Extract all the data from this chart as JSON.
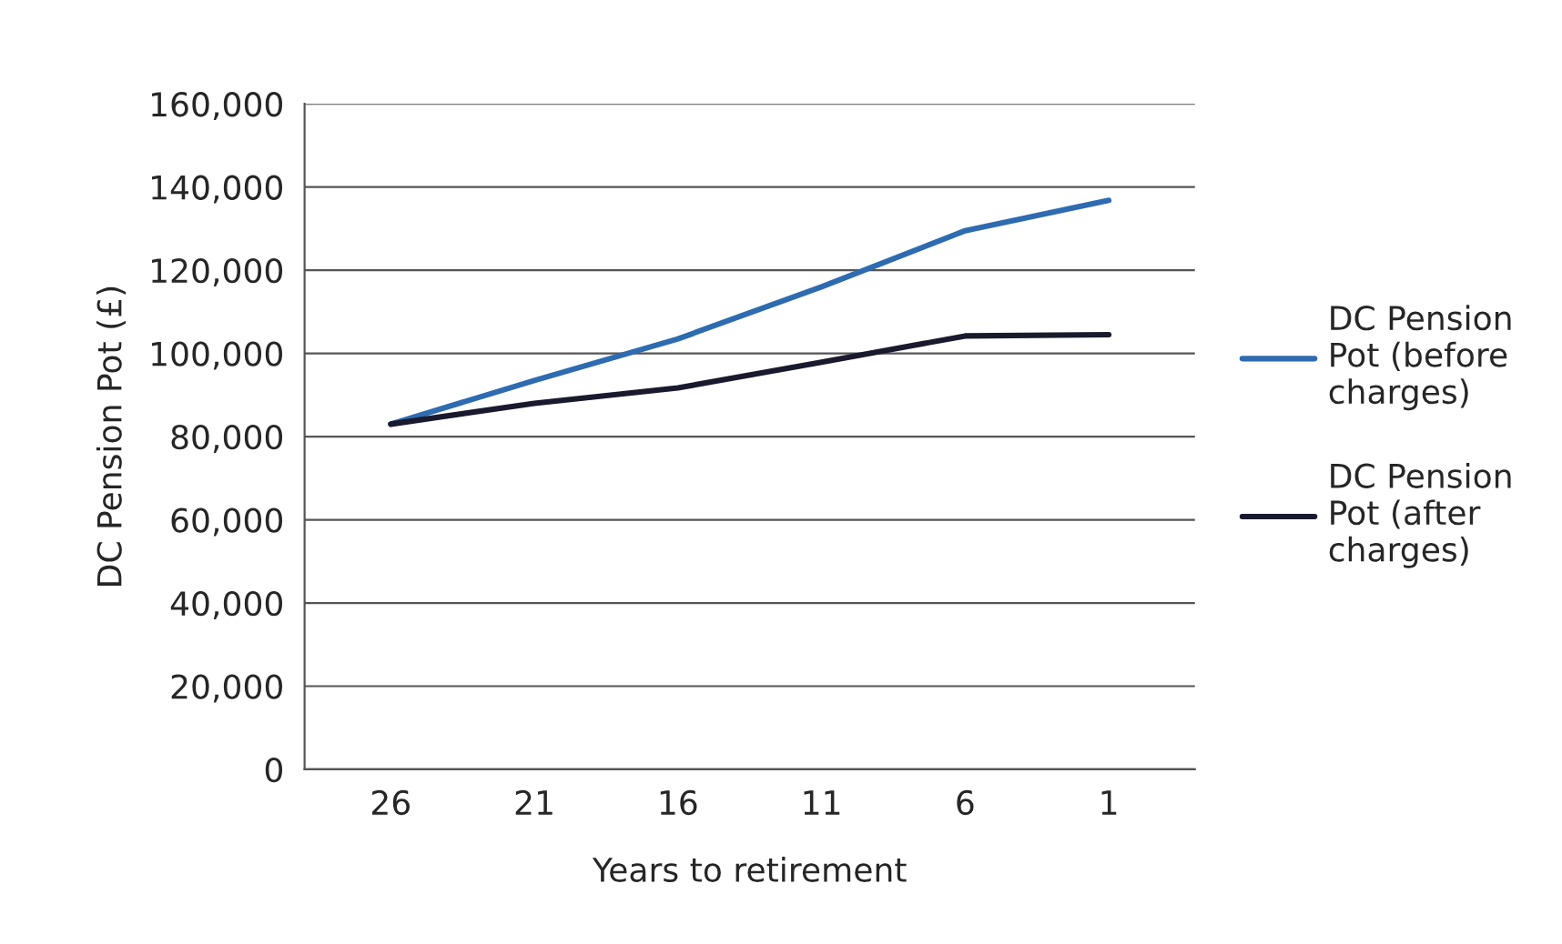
{
  "chart_data": {
    "type": "line",
    "xlabel": "Years to retirement",
    "ylabel": "DC Pension Pot (£)",
    "categories": [
      "26",
      "21",
      "16",
      "11",
      "6",
      "1"
    ],
    "series": [
      {
        "name": "DC Pension Pot (before charges)",
        "color": "#2e6bb0",
        "values": [
          83000,
          93500,
          103500,
          116000,
          129500,
          136800
        ]
      },
      {
        "name": "DC Pension Pot (after charges)",
        "color": "#1a1a2e",
        "values": [
          83000,
          88000,
          91700,
          97900,
          104200,
          104500
        ]
      }
    ],
    "ylim": [
      0,
      160000
    ],
    "yticks": [
      {
        "value": 0,
        "label": "0"
      },
      {
        "value": 20000,
        "label": "20,000"
      },
      {
        "value": 40000,
        "label": "40,000"
      },
      {
        "value": 60000,
        "label": "60,000"
      },
      {
        "value": 80000,
        "label": "80,000"
      },
      {
        "value": 100000,
        "label": "100,000"
      },
      {
        "value": 120000,
        "label": "120,000"
      },
      {
        "value": 140000,
        "label": "140,000"
      },
      {
        "value": 160000,
        "label": "160,000"
      }
    ],
    "grid": "y",
    "legend": "right"
  }
}
